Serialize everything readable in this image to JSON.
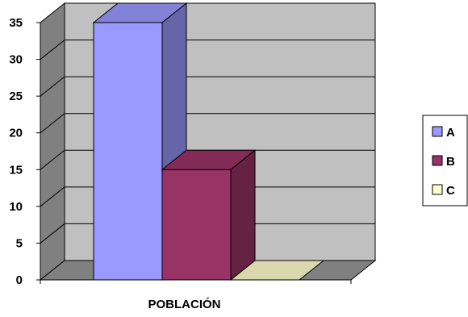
{
  "chart_data": {
    "type": "bar",
    "categories": [
      "POBLACIÓN"
    ],
    "series": [
      {
        "name": "A",
        "values": [
          35
        ],
        "color": "#9999ff"
      },
      {
        "name": "B",
        "values": [
          15
        ],
        "color": "#993366"
      },
      {
        "name": "C",
        "values": [
          0
        ],
        "color": "#ffffcc"
      }
    ],
    "title": "",
    "xlabel": "",
    "ylabel": "",
    "ylim": [
      0,
      35
    ],
    "yticks": [
      "0",
      "5",
      "10",
      "15",
      "20",
      "25",
      "30",
      "35"
    ],
    "grid": true,
    "three_d": true,
    "legend_position": "right",
    "wall_color": "#c0c0c0",
    "floor_color": "#808080"
  }
}
